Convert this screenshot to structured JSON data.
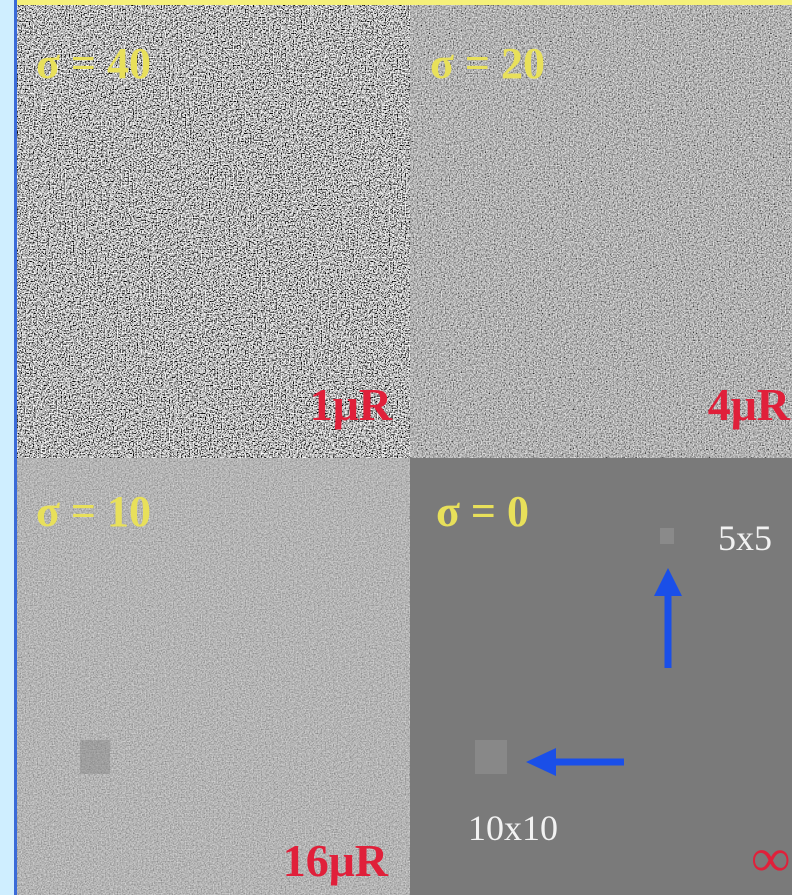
{
  "panels": [
    {
      "sigma": "σ = 40",
      "dose": "1μR"
    },
    {
      "sigma": "σ = 20",
      "dose": "4μR"
    },
    {
      "sigma": "σ = 10",
      "dose": "16μR"
    },
    {
      "sigma": "σ = 0",
      "dose": "∞"
    }
  ],
  "annotations": {
    "small": "5x5",
    "large": "10x10"
  }
}
